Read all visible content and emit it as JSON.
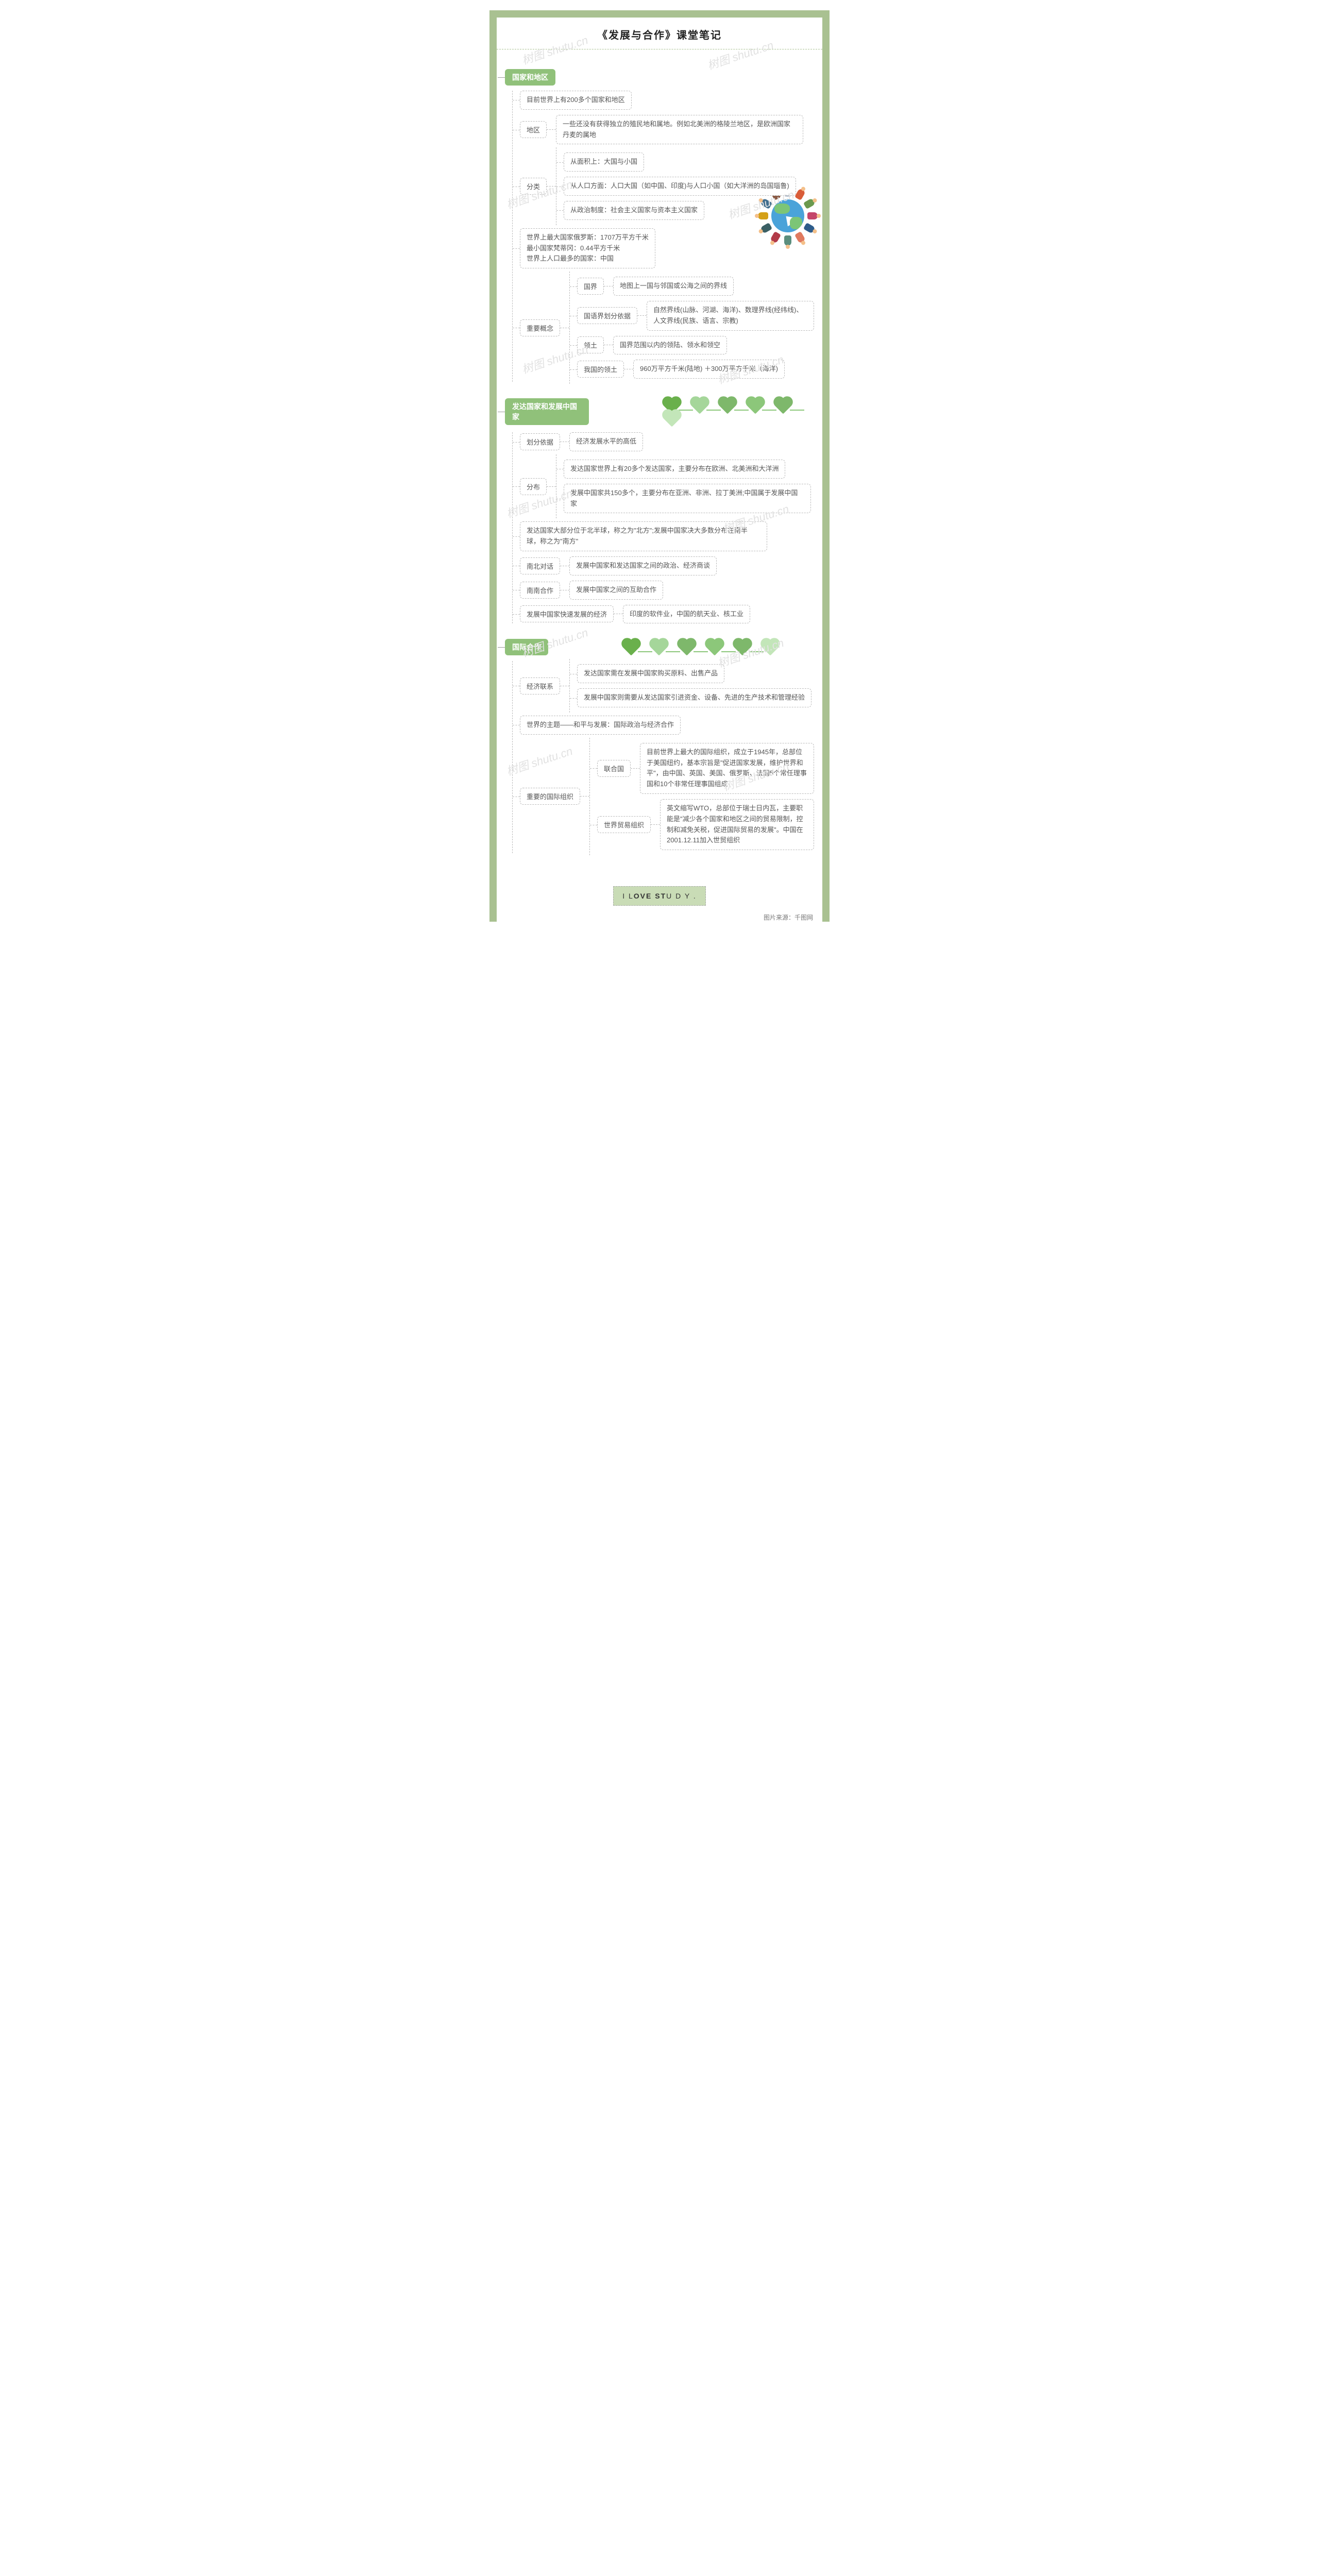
{
  "title": "《发展与合作》课堂笔记",
  "footer": {
    "prefix": "I  L",
    "mid": "OVE ST",
    "suffix": "U D Y ."
  },
  "credit": "图片来源：千图网",
  "watermark": "树图 shutu.cn",
  "colors": {
    "frame": "#a9c191",
    "header_bg": "#90c17a",
    "heart_main": "#6ab04c",
    "accent": "#7eb86b"
  },
  "sections": [
    {
      "id": "s1",
      "header": "国家和地区",
      "items": [
        {
          "type": "leaf",
          "text": "目前世界上有200多个国家和地区"
        },
        {
          "type": "branch",
          "label": "地区",
          "children": [
            {
              "text": "一些还没有获得独立的殖民地和属地。例如北美洲的格陵兰地区，是欧洲国家丹麦的属地"
            }
          ]
        },
        {
          "type": "branch",
          "label": "分类",
          "children": [
            {
              "text": "从面积上：大国与小国"
            },
            {
              "text": "从人口方面：人口大国（如中国、印度)与人口小国（如大洋洲的岛国瑙鲁)"
            },
            {
              "text": "从政治制度：社会主义国家与资本主义国家"
            }
          ]
        },
        {
          "type": "leaf",
          "text": "世界上最大国家俄罗斯：1707万平方千米\n最小国家梵蒂冈：0.44平方千米\n世界上人口最多的国家：中国"
        },
        {
          "type": "branch",
          "label": "重要概念",
          "children": [
            {
              "label": "国界",
              "text": "地图上一国与邻国或公海之间的界线"
            },
            {
              "label": "国语界划分依据",
              "text": "自然界线(山脉、河湖、海洋)、数理界线(经纬线)、人文界线(民族、语言、宗教)"
            },
            {
              "label": "领土",
              "text": "国界范围以内的领陆、领水和领空"
            },
            {
              "label": "我国的领土",
              "text": "960万平方千米(陆地)  ＋300万平方千米（海洋)"
            }
          ]
        }
      ]
    },
    {
      "id": "s2",
      "header": "发达国家和发展中国家",
      "hearts": true,
      "items": [
        {
          "type": "branch",
          "label": "划分依据",
          "children": [
            {
              "text": "经济发展水平的高低"
            }
          ]
        },
        {
          "type": "branch",
          "label": "分布",
          "children": [
            {
              "text": "发达国家世界上有20多个发达国家，主要分布在欧洲、北美洲和大洋洲"
            },
            {
              "text": "发展中国家共150多个，主要分布在亚洲、非洲、拉丁美洲;中国属于发展中国家"
            }
          ]
        },
        {
          "type": "leaf",
          "text": "发达国家大部分位于北半球，称之为\"北方\";发展中国家决大多数分布在南半球，称之为\"南方\""
        },
        {
          "type": "branch",
          "label": "南北对话",
          "inline": true,
          "children": [
            {
              "text": "发展中国家和发达国家之间的政治、经济商谈"
            }
          ]
        },
        {
          "type": "branch",
          "label": "南南合作",
          "inline": true,
          "children": [
            {
              "text": "发展中国家之间的互助合作"
            }
          ]
        },
        {
          "type": "branch",
          "label": "发展中国家快速发展的经济",
          "inline": true,
          "children": [
            {
              "text": "印度的软件业，中国的航天业、核工业"
            }
          ]
        }
      ]
    },
    {
      "id": "s3",
      "header": "国际合作",
      "hearts": true,
      "items": [
        {
          "type": "branch",
          "label": "经济联系",
          "children": [
            {
              "text": "发达国家需在发展中国家购买原料、出售产品"
            },
            {
              "text": "发展中国家则需要从发达国家引进资金、设备、先进的生产技术和管理经验"
            }
          ]
        },
        {
          "type": "leaf",
          "text": "世界的主题——和平与发展：国际政治与经济合作"
        },
        {
          "type": "branch",
          "label": "重要的国际组织",
          "children": [
            {
              "label": "联合国",
              "text": "目前世界上最大的国际组织，成立于1945年，总部位于美国纽约，基本宗旨是\"促进国家发展，维护世界和平\"，由中国、英国、美国、俄罗斯、法国5个常任理事国和10个非常任理事国组成"
            },
            {
              "label": "世界贸易组织",
              "text": "英文缩写WTO，总部位于瑞士日内瓦，主要职能是\"减少各个国家和地区之间的贸易限制，控制和减免关税，促进国际贸易的发展\"。中国在2001.12.11加入世贸组织"
            }
          ]
        }
      ]
    }
  ],
  "people_colors": [
    "#3d5a80",
    "#d95d39",
    "#6a994e",
    "#c44569",
    "#2e5c8a",
    "#e07a5f",
    "#5b8e7d",
    "#b23a48",
    "#3b6064",
    "#d4a017",
    "#406e8e",
    "#8a5a44"
  ]
}
